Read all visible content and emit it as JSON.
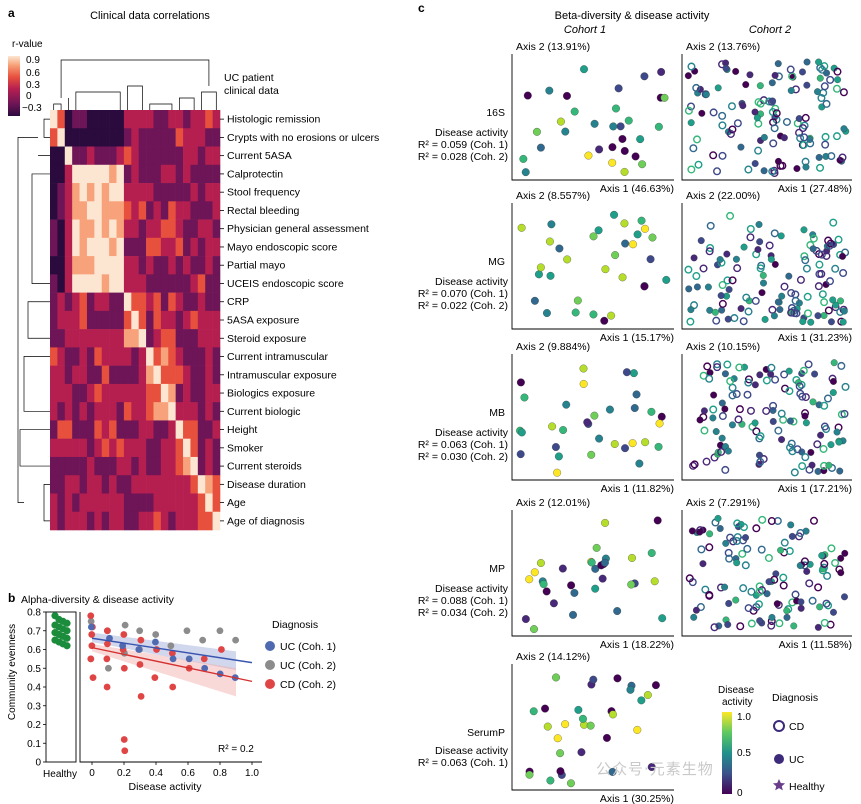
{
  "panel_a": {
    "letter": "a",
    "title": "Clinical data correlations",
    "colorbar_label": "r-value",
    "colorbar_ticks": [
      "0.9",
      "0.6",
      "0.3",
      "0",
      "−0.3"
    ],
    "dendrogram_label_line1": "UC patient",
    "dendrogram_label_line2": "clinical data",
    "variables": [
      "Histologic remission",
      "Crypts with no erosions or ulcers",
      "Current 5ASA",
      "Calprotectin",
      "Stool frequency",
      "Rectal bleeding",
      "Physician general assessment",
      "Mayo endoscopic score",
      "Partial mayo",
      "UCEIS endoscopic score",
      "CRP",
      "5ASA exposure",
      "Steroid exposure",
      "Current intramuscular",
      "Intramuscular exposure",
      "Biologics exposure",
      "Current biologic",
      "Height",
      "Smoker",
      "Current steroids",
      "Disease duration",
      "Age",
      "Age of diagnosis"
    ],
    "clusters": [
      [
        0,
        1
      ],
      [
        2
      ],
      [
        3,
        9
      ],
      [
        10,
        12
      ],
      [
        13,
        16
      ],
      [
        17,
        19
      ],
      [
        20,
        22
      ]
    ],
    "colors": [
      "#2b0a3d",
      "#6d1556",
      "#b51f50",
      "#e8503e",
      "#f7a27a",
      "#fce6d2"
    ]
  },
  "panel_b": {
    "letter": "b",
    "title": "Alpha-diversity & disease activity",
    "ylabel": "Community evenness",
    "xlabel": "Disease activity",
    "healthy_label": "Healthy",
    "r2_label": "R² = 0.2",
    "legend_title": "Diagnosis",
    "legend": [
      {
        "label": "UC (Coh. 1)",
        "color": "#4f6ab0"
      },
      {
        "label": "UC (Coh. 2)",
        "color": "#8c8c8c"
      },
      {
        "label": "CD (Coh. 2)",
        "color": "#e04545"
      }
    ],
    "healthy_color": "#1a8c3c",
    "yticks": [
      "0",
      "0.1",
      "0.2",
      "0.3",
      "0.4",
      "0.5",
      "0.6",
      "0.7",
      "0.8"
    ],
    "xticks": [
      "0",
      "0.2",
      "0.4",
      "0.6",
      "0.8",
      "1.0"
    ]
  },
  "panel_c": {
    "letter": "c",
    "title": "Beta-diversity & disease activity",
    "cohort_headers": [
      "Cohort 1",
      "Cohort 2"
    ],
    "stat_label": "Disease activity",
    "rows": [
      {
        "name": "16S",
        "c1_y": "Axis 2 (13.91%)",
        "c1_x": "Axis 1 (46.63%)",
        "c2_y": "Axis 2 (13.76%)",
        "c2_x": "Axis 1 (27.48%)",
        "r2_coh1": "R² = 0.059 (Coh. 1)",
        "r2_coh2": "R² = 0.028 (Coh. 2)"
      },
      {
        "name": "MG",
        "c1_y": "Axis 2 (8.557%)",
        "c1_x": "Axis 1 (15.17%)",
        "c2_y": "Axis 2 (22.00%)",
        "c2_x": "Axis 1 (31.23%)",
        "r2_coh1": "R² = 0.070 (Coh. 1)",
        "r2_coh2": "R² = 0.022 (Coh. 2)"
      },
      {
        "name": "MB",
        "c1_y": "Axis 2 (9.884%)",
        "c1_x": "Axis 1 (11.82%)",
        "c2_y": "Axis 2 (10.15%)",
        "c2_x": "Axis 1 (17.21%)",
        "r2_coh1": "R² = 0.063 (Coh. 1)",
        "r2_coh2": "R² = 0.030 (Coh. 2)"
      },
      {
        "name": "MP",
        "c1_y": "Axis 2 (12.01%)",
        "c1_x": "Axis 1 (18.22%)",
        "c2_y": "Axis 2 (7.291%)",
        "c2_x": "Axis 1 (11.58%)",
        "r2_coh1": "R² = 0.088 (Coh. 1)",
        "r2_coh2": "R² = 0.034 (Coh. 2)"
      },
      {
        "name": "SerumP",
        "c1_y": "Axis 2 (14.12%)",
        "c1_x": "Axis 1 (30.25%)",
        "c2_y": "",
        "c2_x": "",
        "r2_coh1": "R² = 0.063 (Coh. 1)",
        "r2_coh2": ""
      }
    ],
    "colorbar_title_line1": "Disease",
    "colorbar_title_line2": "activity",
    "colorbar_ticks": [
      "1.0",
      "0.5",
      "0"
    ],
    "colorbar_colors": [
      "#440154",
      "#3b528b",
      "#21918c",
      "#5ec962",
      "#fde725"
    ],
    "diagnosis_title": "Diagnosis",
    "diagnosis_legend": [
      {
        "label": "CD",
        "marker": "ring-icon"
      },
      {
        "label": "UC",
        "marker": "filled-circle-icon"
      },
      {
        "label": "Healthy",
        "marker": "star-icon"
      }
    ]
  },
  "watermark": "公众号·元素生物",
  "chart_data": [
    {
      "type": "heatmap",
      "title": "Clinical data correlations",
      "rows": [
        "Histologic remission",
        "Crypts with no erosions or ulcers",
        "Current 5ASA",
        "Calprotectin",
        "Stool frequency",
        "Rectal bleeding",
        "Physician general assessment",
        "Mayo endoscopic score",
        "Partial mayo",
        "UCEIS endoscopic score",
        "CRP",
        "5ASA exposure",
        "Steroid exposure",
        "Current intramuscular",
        "Intramuscular exposure",
        "Biologics exposure",
        "Current biologic",
        "Height",
        "Smoker",
        "Current steroids",
        "Disease duration",
        "Age",
        "Age of diagnosis"
      ],
      "value_range": [
        -0.3,
        1.0
      ],
      "colorbar_label": "r-value"
    },
    {
      "type": "scatter",
      "title": "Alpha-diversity & disease activity",
      "xlabel": "Disease activity",
      "ylabel": "Community evenness",
      "xlim": [
        -0.1,
        1.05
      ],
      "ylim": [
        0,
        0.8
      ],
      "series": [
        {
          "name": "UC (Coh. 1)",
          "x": [
            0.0,
            0.1,
            0.2,
            0.3,
            0.4,
            0.5,
            0.6,
            0.7,
            0.8,
            0.9
          ],
          "y": [
            0.72,
            0.66,
            0.62,
            0.6,
            0.64,
            0.55,
            0.55,
            0.5,
            0.47,
            0.45
          ],
          "trend": [
            [
              0.0,
              0.66
            ],
            [
              1.0,
              0.53
            ]
          ]
        },
        {
          "name": "UC (Coh. 2)",
          "x": [
            0.0,
            0.0,
            0.1,
            0.1,
            0.2,
            0.2,
            0.3,
            0.3,
            0.4,
            0.5,
            0.6,
            0.7,
            0.8,
            0.9
          ],
          "y": [
            0.75,
            0.55,
            0.7,
            0.5,
            0.73,
            0.58,
            0.7,
            0.6,
            0.68,
            0.62,
            0.7,
            0.65,
            0.7,
            0.65
          ]
        },
        {
          "name": "CD (Coh. 2)",
          "x": [
            0.0,
            0.0,
            0.0,
            0.0,
            0.0,
            0.0,
            0.1,
            0.1,
            0.1,
            0.1,
            0.2,
            0.2,
            0.2,
            0.2,
            0.2,
            0.3,
            0.3,
            0.3,
            0.4,
            0.4,
            0.5,
            0.5,
            0.6,
            0.7,
            0.8
          ],
          "y": [
            0.78,
            0.72,
            0.68,
            0.62,
            0.55,
            0.45,
            0.7,
            0.63,
            0.55,
            0.4,
            0.68,
            0.6,
            0.5,
            0.12,
            0.06,
            0.65,
            0.52,
            0.35,
            0.6,
            0.45,
            0.58,
            0.4,
            0.5,
            0.55,
            0.6
          ],
          "trend": [
            [
              0.0,
              0.61
            ],
            [
              1.0,
              0.43
            ]
          ]
        },
        {
          "name": "Healthy",
          "x": [
            0,
            0,
            0,
            0,
            0,
            0,
            0,
            0,
            0,
            0,
            0,
            0,
            0,
            0,
            0,
            0
          ],
          "y": [
            0.78,
            0.76,
            0.75,
            0.74,
            0.73,
            0.72,
            0.71,
            0.7,
            0.69,
            0.68,
            0.67,
            0.66,
            0.65,
            0.64,
            0.63,
            0.62
          ]
        }
      ],
      "annotation": "R² = 0.2"
    },
    {
      "type": "scatter",
      "title": "Beta-diversity & disease activity",
      "panels": [
        {
          "row": "16S",
          "cohort": "Cohort 1",
          "xlabel": "Axis 1 (46.63%)",
          "ylabel": "Axis 2 (13.91%)"
        },
        {
          "row": "16S",
          "cohort": "Cohort 2",
          "xlabel": "Axis 1 (27.48%)",
          "ylabel": "Axis 2 (13.76%)"
        },
        {
          "row": "MG",
          "cohort": "Cohort 1",
          "xlabel": "Axis 1 (15.17%)",
          "ylabel": "Axis 2 (8.557%)"
        },
        {
          "row": "MG",
          "cohort": "Cohort 2",
          "xlabel": "Axis 1 (31.23%)",
          "ylabel": "Axis 2 (22.00%)"
        },
        {
          "row": "MB",
          "cohort": "Cohort 1",
          "xlabel": "Axis 1 (11.82%)",
          "ylabel": "Axis 2 (9.884%)"
        },
        {
          "row": "MB",
          "cohort": "Cohort 2",
          "xlabel": "Axis 1 (17.21%)",
          "ylabel": "Axis 2 (10.15%)"
        },
        {
          "row": "MP",
          "cohort": "Cohort 1",
          "xlabel": "Axis 1 (18.22%)",
          "ylabel": "Axis 2 (12.01%)"
        },
        {
          "row": "MP",
          "cohort": "Cohort 2",
          "xlabel": "Axis 1 (11.58%)",
          "ylabel": "Axis 2 (7.291%)"
        },
        {
          "row": "SerumP",
          "cohort": "Cohort 1",
          "xlabel": "Axis 1 (30.25%)",
          "ylabel": "Axis 2 (14.12%)"
        }
      ],
      "colorbar": {
        "label": "Disease activity",
        "range": [
          0,
          1.0
        ]
      }
    }
  ]
}
